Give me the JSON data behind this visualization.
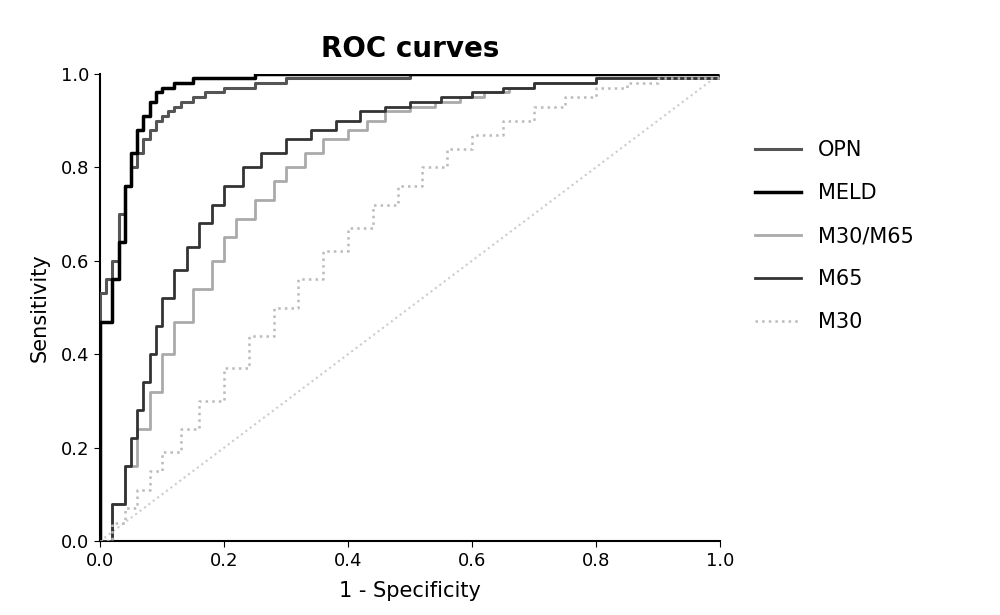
{
  "title": "ROC curves",
  "xlabel": "1 - Specificity",
  "ylabel": "Sensitivity",
  "title_fontsize": 20,
  "axis_fontsize": 15,
  "tick_fontsize": 13,
  "legend_fontsize": 15,
  "curves": {
    "OPN": {
      "color": "#555555",
      "linewidth": 2.2,
      "linestyle": "solid",
      "fpr": [
        0.0,
        0.0,
        0.01,
        0.02,
        0.03,
        0.04,
        0.05,
        0.06,
        0.07,
        0.08,
        0.09,
        0.1,
        0.11,
        0.12,
        0.13,
        0.15,
        0.17,
        0.2,
        0.25,
        0.3,
        0.35,
        0.4,
        0.5,
        0.55,
        0.6,
        0.65,
        0.7,
        1.0
      ],
      "tpr": [
        0.0,
        0.53,
        0.56,
        0.6,
        0.7,
        0.76,
        0.8,
        0.83,
        0.86,
        0.88,
        0.9,
        0.91,
        0.92,
        0.93,
        0.94,
        0.95,
        0.96,
        0.97,
        0.98,
        0.99,
        0.99,
        0.99,
        1.0,
        1.0,
        1.0,
        1.0,
        1.0,
        1.0
      ]
    },
    "MELD": {
      "color": "#000000",
      "linewidth": 2.5,
      "linestyle": "solid",
      "fpr": [
        0.0,
        0.0,
        0.02,
        0.03,
        0.04,
        0.05,
        0.06,
        0.07,
        0.08,
        0.09,
        0.1,
        0.12,
        0.15,
        0.2,
        0.25,
        0.3,
        0.4,
        0.5,
        0.6,
        0.65,
        1.0
      ],
      "tpr": [
        0.0,
        0.47,
        0.56,
        0.64,
        0.76,
        0.83,
        0.88,
        0.91,
        0.94,
        0.96,
        0.97,
        0.98,
        0.99,
        0.99,
        1.0,
        1.0,
        1.0,
        1.0,
        1.0,
        1.0,
        1.0
      ]
    },
    "M30/M65": {
      "color": "#aaaaaa",
      "linewidth": 2.0,
      "linestyle": "solid",
      "fpr": [
        0.0,
        0.02,
        0.04,
        0.06,
        0.08,
        0.1,
        0.12,
        0.15,
        0.18,
        0.2,
        0.22,
        0.25,
        0.28,
        0.3,
        0.33,
        0.36,
        0.4,
        0.43,
        0.46,
        0.5,
        0.54,
        0.58,
        0.62,
        0.66,
        0.7,
        0.75,
        0.8,
        1.0
      ],
      "tpr": [
        0.0,
        0.08,
        0.16,
        0.24,
        0.32,
        0.4,
        0.47,
        0.54,
        0.6,
        0.65,
        0.69,
        0.73,
        0.77,
        0.8,
        0.83,
        0.86,
        0.88,
        0.9,
        0.92,
        0.93,
        0.94,
        0.95,
        0.96,
        0.97,
        0.98,
        0.98,
        0.99,
        1.0
      ]
    },
    "M65": {
      "color": "#333333",
      "linewidth": 2.0,
      "linestyle": "solid",
      "fpr": [
        0.0,
        0.02,
        0.04,
        0.05,
        0.06,
        0.07,
        0.08,
        0.09,
        0.1,
        0.12,
        0.14,
        0.16,
        0.18,
        0.2,
        0.23,
        0.26,
        0.3,
        0.34,
        0.38,
        0.42,
        0.46,
        0.5,
        0.55,
        0.6,
        0.65,
        0.7,
        0.8,
        1.0
      ],
      "tpr": [
        0.0,
        0.08,
        0.16,
        0.22,
        0.28,
        0.34,
        0.4,
        0.46,
        0.52,
        0.58,
        0.63,
        0.68,
        0.72,
        0.76,
        0.8,
        0.83,
        0.86,
        0.88,
        0.9,
        0.92,
        0.93,
        0.94,
        0.95,
        0.96,
        0.97,
        0.98,
        0.99,
        1.0
      ]
    },
    "M30": {
      "color": "#bbbbbb",
      "linewidth": 1.8,
      "linestyle": "dotted",
      "fpr": [
        0.0,
        0.02,
        0.04,
        0.06,
        0.08,
        0.1,
        0.13,
        0.16,
        0.2,
        0.24,
        0.28,
        0.32,
        0.36,
        0.4,
        0.44,
        0.48,
        0.52,
        0.56,
        0.6,
        0.65,
        0.7,
        0.75,
        0.8,
        0.85,
        0.9,
        1.0
      ],
      "tpr": [
        0.0,
        0.04,
        0.07,
        0.11,
        0.15,
        0.19,
        0.24,
        0.3,
        0.37,
        0.44,
        0.5,
        0.56,
        0.62,
        0.67,
        0.72,
        0.76,
        0.8,
        0.84,
        0.87,
        0.9,
        0.93,
        0.95,
        0.97,
        0.98,
        0.99,
        1.0
      ]
    }
  },
  "diagonal_color": "#cccccc",
  "diagonal_linestyle": "dotted",
  "diagonal_linewidth": 1.5,
  "xlim": [
    0.0,
    1.0
  ],
  "ylim": [
    0.0,
    1.0
  ],
  "xticks": [
    0.0,
    0.2,
    0.4,
    0.6,
    0.8,
    1.0
  ],
  "yticks": [
    0.0,
    0.2,
    0.4,
    0.6,
    0.8,
    1.0
  ],
  "background_color": "#ffffff",
  "legend_order": [
    "OPN",
    "MELD",
    "M30/M65",
    "M65",
    "M30"
  ]
}
